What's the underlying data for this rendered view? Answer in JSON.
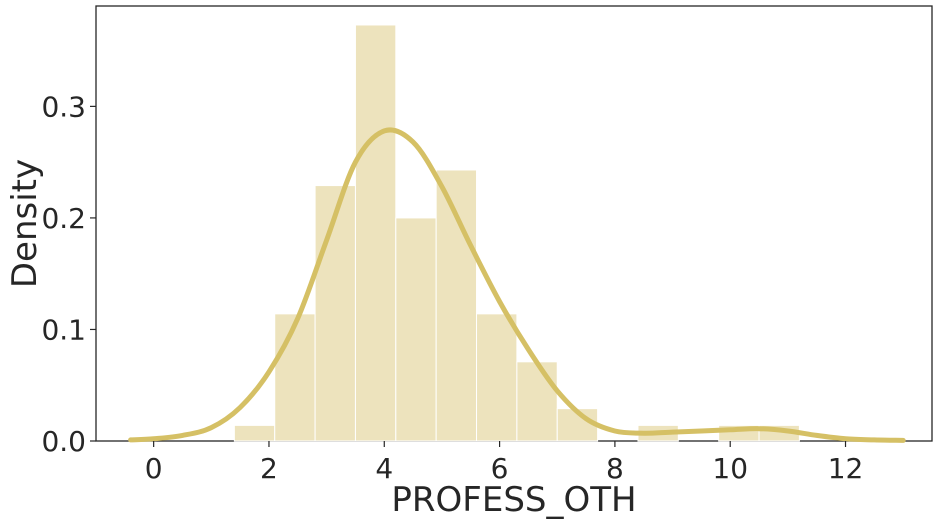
{
  "chart_data": {
    "type": "histogram",
    "title": "",
    "xlabel": "PROFESS_OTH",
    "ylabel": "Density",
    "xlim": [
      -1.0,
      13.5
    ],
    "ylim": [
      0,
      0.39
    ],
    "x_ticks": [
      0,
      2,
      4,
      6,
      8,
      10,
      12
    ],
    "y_ticks": [
      0.0,
      0.1,
      0.2,
      0.3
    ],
    "y_tick_labels": [
      "0.0",
      "0.1",
      "0.2",
      "0.3"
    ],
    "grid": false,
    "bar_color": "#ede3bd",
    "line_color": "#d5c065",
    "bins": [
      {
        "x0": 1.4,
        "x1": 2.1,
        "density": 0.014
      },
      {
        "x0": 2.1,
        "x1": 2.8,
        "density": 0.114
      },
      {
        "x0": 2.8,
        "x1": 3.5,
        "density": 0.229
      },
      {
        "x0": 3.5,
        "x1": 4.2,
        "density": 0.373
      },
      {
        "x0": 4.2,
        "x1": 4.9,
        "density": 0.2
      },
      {
        "x0": 4.9,
        "x1": 5.6,
        "density": 0.243
      },
      {
        "x0": 5.6,
        "x1": 6.3,
        "density": 0.114
      },
      {
        "x0": 6.3,
        "x1": 7.0,
        "density": 0.071
      },
      {
        "x0": 7.0,
        "x1": 7.7,
        "density": 0.029
      },
      {
        "x0": 7.7,
        "x1": 8.4,
        "density": 0.0
      },
      {
        "x0": 8.4,
        "x1": 9.1,
        "density": 0.014
      },
      {
        "x0": 9.1,
        "x1": 9.8,
        "density": 0.0
      },
      {
        "x0": 9.8,
        "x1": 10.5,
        "density": 0.014
      },
      {
        "x0": 10.5,
        "x1": 11.2,
        "density": 0.014
      }
    ],
    "kde": {
      "x": [
        -0.4,
        0.0,
        0.5,
        1.0,
        1.5,
        2.0,
        2.5,
        3.0,
        3.5,
        4.0,
        4.5,
        5.0,
        5.5,
        6.0,
        6.5,
        7.0,
        7.5,
        8.0,
        8.5,
        9.0,
        9.5,
        10.0,
        10.5,
        11.0,
        11.5,
        12.0,
        12.5,
        13.0
      ],
      "y": [
        0.001,
        0.002,
        0.005,
        0.012,
        0.03,
        0.062,
        0.11,
        0.18,
        0.25,
        0.278,
        0.268,
        0.228,
        0.175,
        0.125,
        0.082,
        0.045,
        0.02,
        0.009,
        0.007,
        0.008,
        0.009,
        0.01,
        0.011,
        0.009,
        0.005,
        0.002,
        0.001,
        0.0005
      ]
    }
  }
}
